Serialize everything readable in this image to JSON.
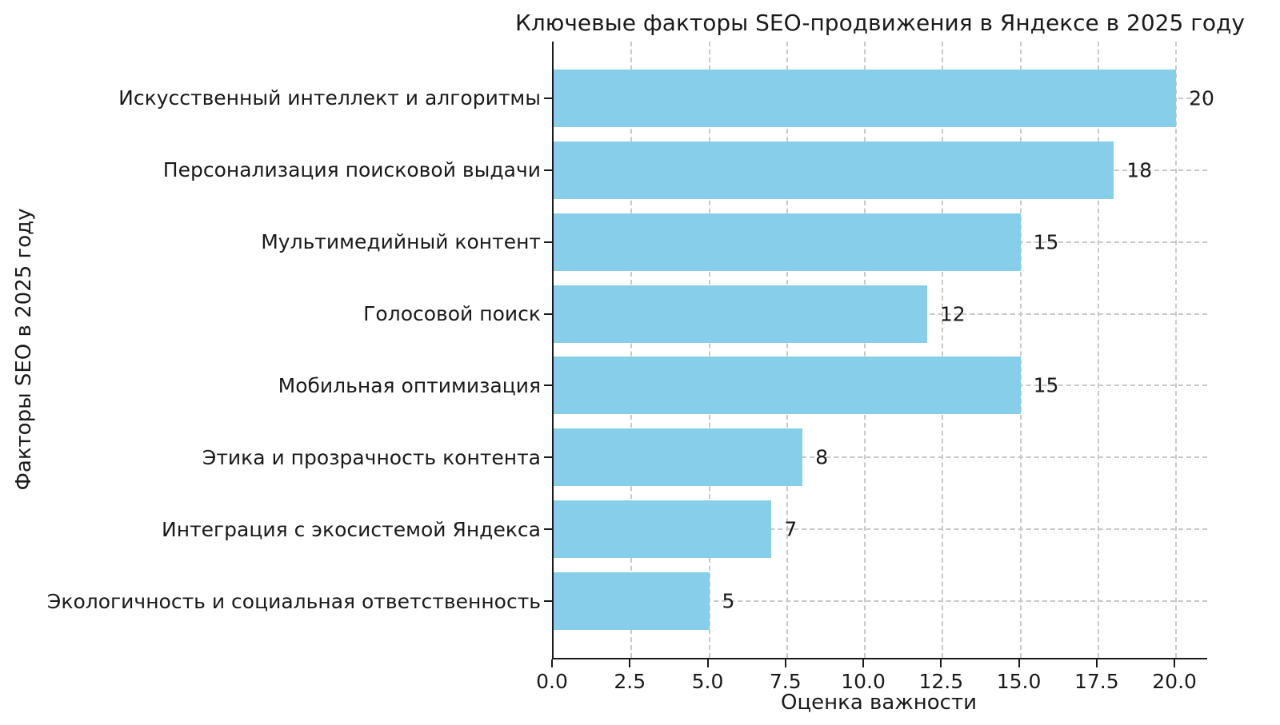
{
  "figure": {
    "background": "#ffffff",
    "text_color": "#1a1a1a",
    "spine_color": "#1a1a1a"
  },
  "chart_data": {
    "type": "bar",
    "orientation": "horizontal",
    "title": "Ключевые факторы SEO-продвижения в Яндексе в 2025 году",
    "xlabel": "Оценка важности",
    "ylabel": "Факторы SEO в 2025 году",
    "categories": [
      "Искусственный интеллект и алгоритмы",
      "Персонализация поисковой выдачи",
      "Мультимедийный контент",
      "Голосовой поиск",
      "Мобильная оптимизация",
      "Этика и прозрачность контента",
      "Интеграция с экосистемой Яндекса",
      "Экологичность и социальная ответственность"
    ],
    "values": [
      20,
      18,
      15,
      12,
      15,
      8,
      7,
      5
    ],
    "value_labels": [
      "20",
      "18",
      "15",
      "12",
      "15",
      "8",
      "7",
      "5"
    ],
    "xticks": [
      0,
      2.5,
      5,
      7.5,
      10,
      12.5,
      15,
      17.5,
      20
    ],
    "xtick_labels": [
      "0.0",
      "2.5",
      "5.0",
      "7.5",
      "10.0",
      "12.5",
      "15.0",
      "17.5",
      "20.0"
    ],
    "xlim": [
      0,
      21
    ],
    "bar_color": "#87CEEB",
    "grid": true,
    "grid_style": "dashed",
    "grid_color": "#c9c9c9",
    "legend": "none"
  }
}
